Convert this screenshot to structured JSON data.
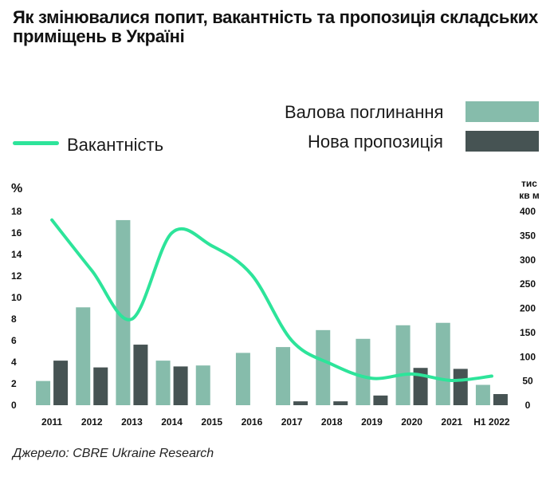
{
  "title": "Як змінювалися попит, вакантність та пропозиція складських приміщень в Україні",
  "source": "Джерело: CBRE Ukraine Research",
  "colors": {
    "absorption": "#86bcab",
    "new_supply": "#465353",
    "vacancy": "#2de49a"
  },
  "chart_data": {
    "type": "bar",
    "categories": [
      "2011",
      "2012",
      "2013",
      "2014",
      "2015",
      "2016",
      "2017",
      "2018",
      "2019",
      "2020",
      "2021",
      "H1 2022"
    ],
    "ylabel_left": "%",
    "ylabel_right": "тис кв м",
    "ylabel_right_lines": [
      "тис",
      "кв м"
    ],
    "y_left_ticks": [
      "0",
      "2",
      "4",
      "6",
      "8",
      "10",
      "12",
      "14",
      "16",
      "18"
    ],
    "y_right_ticks": [
      "0",
      "50",
      "100",
      "150",
      "200",
      "250",
      "300",
      "350",
      "400"
    ],
    "ylim_left": [
      0,
      18
    ],
    "ylim_right": [
      0,
      400
    ],
    "legend": {
      "absorption": "Валова поглинання",
      "new_supply": "Нова пропозиція",
      "vacancy": "Вакантність"
    },
    "series": [
      {
        "name": "Валова поглинання",
        "type": "bar",
        "axis": "right",
        "values": [
          50,
          202,
          382,
          92,
          82,
          108,
          120,
          155,
          137,
          165,
          170,
          42
        ]
      },
      {
        "name": "Нова пропозиція",
        "type": "bar",
        "axis": "right",
        "values": [
          92,
          78,
          125,
          80,
          0,
          0,
          8,
          8,
          20,
          77,
          75,
          23
        ]
      },
      {
        "name": "Вакантність",
        "type": "line",
        "axis": "left",
        "values": [
          17.2,
          12.5,
          8.0,
          16.0,
          14.8,
          12.1,
          6.0,
          3.8,
          2.5,
          2.9,
          2.3,
          2.7
        ]
      }
    ]
  }
}
